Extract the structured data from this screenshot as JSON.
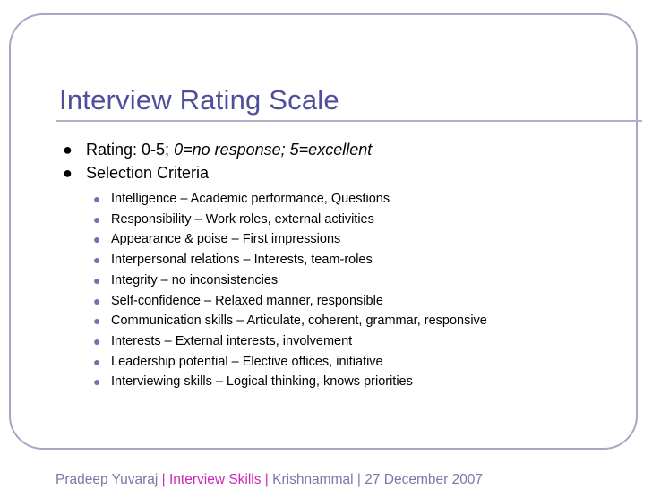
{
  "slide": {
    "title": "Interview Rating Scale",
    "bullets": [
      {
        "text": "Rating: 0-5; ",
        "emphasis": "0=no response; 5=excellent"
      },
      {
        "text": "Selection Criteria",
        "emphasis": ""
      }
    ],
    "criteria": [
      "Intelligence – Academic performance, Questions",
      "Responsibility – Work roles, external activities",
      "Appearance & poise – First impressions",
      "Interpersonal relations – Interests, team-roles",
      "Integrity – no inconsistencies",
      "Self-confidence – Relaxed manner, responsible",
      "Communication skills – Articulate, coherent, grammar, responsive",
      "Interests – External interests, involvement",
      "Leadership potential – Elective offices, initiative",
      "Interviewing skills – Logical thinking, knows priorities"
    ]
  },
  "footer": {
    "author": "Pradeep Yuvaraj ",
    "sep1": "| ",
    "topic": "Interview Skills",
    "sep2": " | ",
    "presenter": "Krishnammal",
    "sep3": " | ",
    "date": "27 December 2007"
  },
  "colors": {
    "title": "#4e4e9c",
    "frame": "#a6a6c8",
    "footer": "#7878a8",
    "footer_highlight": "#cc2ab8"
  }
}
